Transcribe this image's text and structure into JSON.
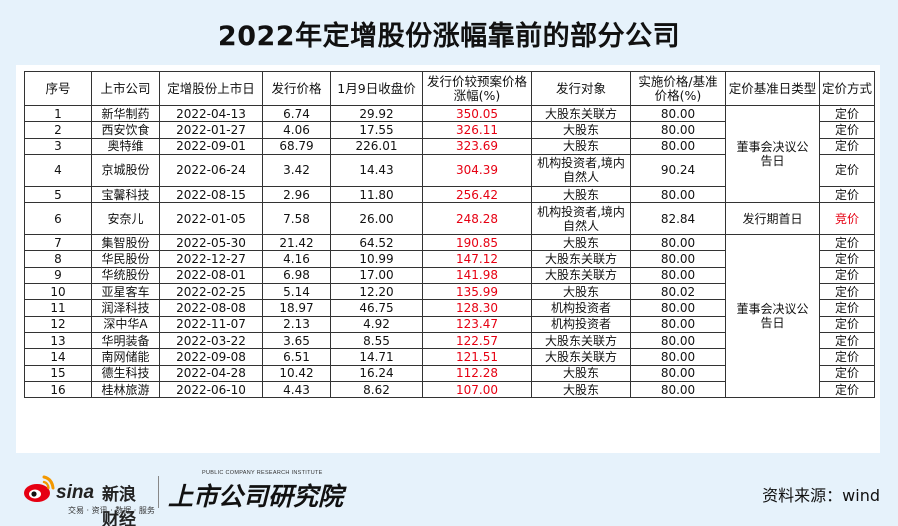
{
  "title": "2022年定增股份涨幅靠前的部分公司",
  "headers": [
    "序号",
    "上市公司",
    "定增股份上市日",
    "发行价格",
    "1月9日收盘价",
    "发行价较预案价格涨幅(%)",
    "发行对象",
    "实施价格/基准价格(%)",
    "定价基准日类型",
    "定价方式"
  ],
  "rows": [
    {
      "no": "1",
      "company": "新华制药",
      "date": "2022-04-13",
      "price": "6.74",
      "close": "29.92",
      "gain": "350.05",
      "target": "大股东关联方",
      "ratio": "80.00",
      "method": "定价"
    },
    {
      "no": "2",
      "company": "西安饮食",
      "date": "2022-01-27",
      "price": "4.06",
      "close": "17.55",
      "gain": "326.11",
      "target": "大股东",
      "ratio": "80.00",
      "method": "定价"
    },
    {
      "no": "3",
      "company": "奥特维",
      "date": "2022-09-01",
      "price": "68.79",
      "close": "226.01",
      "gain": "323.69",
      "target": "大股东",
      "ratio": "80.00",
      "method": "定价"
    },
    {
      "no": "4",
      "company": "京城股份",
      "date": "2022-06-24",
      "price": "3.42",
      "close": "14.43",
      "gain": "304.39",
      "target": "机构投资者,境内自然人",
      "ratio": "90.24",
      "method": "定价"
    },
    {
      "no": "5",
      "company": "宝馨科技",
      "date": "2022-08-15",
      "price": "2.96",
      "close": "11.80",
      "gain": "256.42",
      "target": "大股东",
      "ratio": "80.00",
      "method": "定价"
    },
    {
      "no": "6",
      "company": "安奈儿",
      "date": "2022-01-05",
      "price": "7.58",
      "close": "26.00",
      "gain": "248.28",
      "target": "机构投资者,境内自然人",
      "ratio": "82.84",
      "method": "竞价"
    },
    {
      "no": "7",
      "company": "集智股份",
      "date": "2022-05-30",
      "price": "21.42",
      "close": "64.52",
      "gain": "190.85",
      "target": "大股东",
      "ratio": "80.00",
      "method": "定价"
    },
    {
      "no": "8",
      "company": "华民股份",
      "date": "2022-12-27",
      "price": "4.16",
      "close": "10.99",
      "gain": "147.12",
      "target": "大股东关联方",
      "ratio": "80.00",
      "method": "定价"
    },
    {
      "no": "9",
      "company": "华统股份",
      "date": "2022-08-01",
      "price": "6.98",
      "close": "17.00",
      "gain": "141.98",
      "target": "大股东关联方",
      "ratio": "80.00",
      "method": "定价"
    },
    {
      "no": "10",
      "company": "亚星客车",
      "date": "2022-02-25",
      "price": "5.14",
      "close": "12.20",
      "gain": "135.99",
      "target": "大股东",
      "ratio": "80.02",
      "method": "定价"
    },
    {
      "no": "11",
      "company": "润泽科技",
      "date": "2022-08-08",
      "price": "18.97",
      "close": "46.75",
      "gain": "128.30",
      "target": "机构投资者",
      "ratio": "80.00",
      "method": "定价"
    },
    {
      "no": "12",
      "company": "深中华A",
      "date": "2022-11-07",
      "price": "2.13",
      "close": "4.92",
      "gain": "123.47",
      "target": "机构投资者",
      "ratio": "80.00",
      "method": "定价"
    },
    {
      "no": "13",
      "company": "华明装备",
      "date": "2022-03-22",
      "price": "3.65",
      "close": "8.55",
      "gain": "122.57",
      "target": "大股东关联方",
      "ratio": "80.00",
      "method": "定价"
    },
    {
      "no": "14",
      "company": "南网储能",
      "date": "2022-09-08",
      "price": "6.51",
      "close": "14.71",
      "gain": "121.51",
      "target": "大股东关联方",
      "ratio": "80.00",
      "method": "定价"
    },
    {
      "no": "15",
      "company": "德生科技",
      "date": "2022-04-28",
      "price": "10.42",
      "close": "16.24",
      "gain": "112.28",
      "target": "大股东",
      "ratio": "80.00",
      "method": "定价"
    },
    {
      "no": "16",
      "company": "桂林旅游",
      "date": "2022-06-10",
      "price": "4.43",
      "close": "8.62",
      "gain": "107.00",
      "target": "大股东",
      "ratio": "80.00",
      "method": "定价"
    }
  ],
  "basis_groups": [
    {
      "label": "董事会决议公告日",
      "start": 0,
      "span": 5
    },
    {
      "label": "发行期首日",
      "start": 5,
      "span": 1
    },
    {
      "label": "董事会决议公告日",
      "start": 6,
      "span": 10
    }
  ],
  "colors": {
    "highlight": "#e60012",
    "background": "#e6f2fb"
  },
  "footer": {
    "sina_name": "sina",
    "sina_cn": "新浪财经",
    "sina_tagline": "交易 · 资讯 · 数据 · 服务",
    "lcri_sub": "PUBLIC COMPANY RESEARCH INSTITUTE",
    "lcri_main": "上市公司研究院",
    "source": "资料来源：wind"
  }
}
